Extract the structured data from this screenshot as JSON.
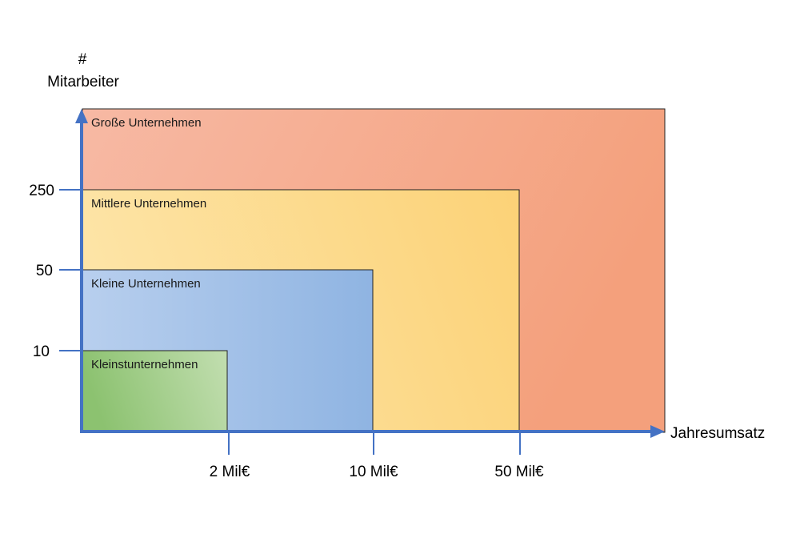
{
  "axes": {
    "y_title_line1": "#",
    "y_title_line2": "Mitarbeiter",
    "x_title": "Jahresumsatz",
    "y_ticks": [
      "250",
      "50",
      "10"
    ],
    "x_ticks": [
      "2 Mil€",
      "10 Mil€",
      "50 Mil€"
    ],
    "axis_color": "#4472c4"
  },
  "categories": [
    {
      "label": "Große Unternehmen",
      "max_employees": null,
      "max_revenue": null,
      "colors": [
        "#f7b9a4",
        "#f4a07c"
      ]
    },
    {
      "label": "Mittlere Unternehmen",
      "max_employees": "250",
      "max_revenue": "50 Mil€",
      "colors": [
        "#fde4a6",
        "#fcd277"
      ]
    },
    {
      "label": "Kleine Unternehmen",
      "max_employees": "50",
      "max_revenue": "10 Mil€",
      "colors": [
        "#b8cfee",
        "#8fb4e2"
      ]
    },
    {
      "label": "Kleinstunternehmen",
      "max_employees": "10",
      "max_revenue": "2 Mil€",
      "colors": [
        "#8cc270",
        "#c2deb0"
      ]
    }
  ]
}
